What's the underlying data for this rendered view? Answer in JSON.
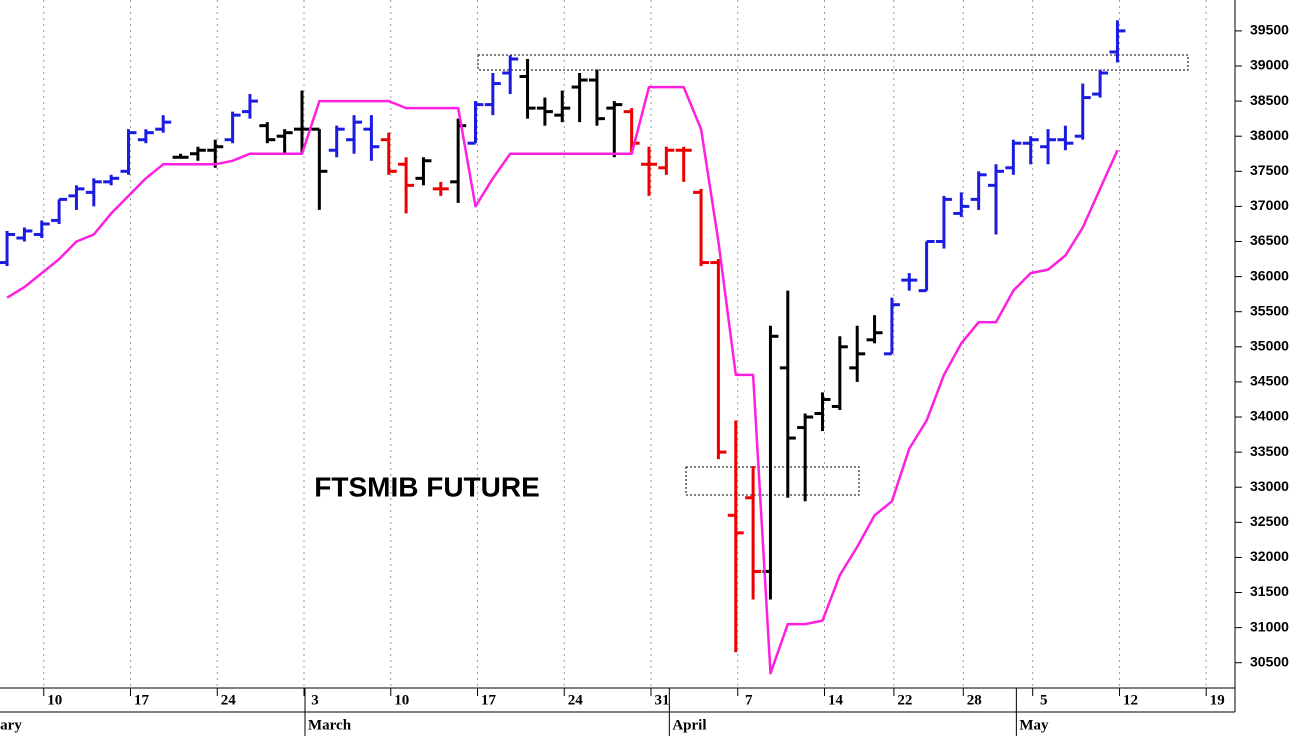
{
  "chart_data": {
    "type": "ohlc",
    "annotation": "FTSMIB FUTURE",
    "categories": [
      null,
      null,
      null,
      null,
      null,
      "10",
      null,
      null,
      null,
      null,
      "17",
      null,
      null,
      null,
      null,
      "24",
      null,
      null,
      null,
      null,
      "3",
      null,
      null,
      null,
      null,
      "10",
      null,
      null,
      null,
      null,
      "17",
      null,
      null,
      null,
      null,
      "24",
      null,
      null,
      null,
      null,
      "31",
      null,
      null,
      null,
      null,
      "7",
      null,
      null,
      null,
      null,
      "14",
      null,
      null,
      null,
      "22",
      null,
      null,
      null,
      "28",
      null,
      null,
      null,
      "5",
      null,
      null,
      null,
      null,
      "12",
      null,
      null,
      null,
      null,
      "19"
    ],
    "month_labels": [
      "February",
      null,
      null,
      null,
      null,
      null,
      null,
      null,
      null,
      null,
      null,
      null,
      null,
      null,
      null,
      null,
      null,
      null,
      null,
      null,
      "March",
      null,
      null,
      null,
      null,
      null,
      null,
      null,
      null,
      null,
      null,
      null,
      null,
      null,
      null,
      null,
      null,
      null,
      null,
      null,
      null,
      "April",
      null,
      null,
      null,
      null,
      null,
      null,
      null,
      null,
      null,
      null,
      null,
      null,
      null,
      null,
      null,
      null,
      null,
      null,
      null,
      "May",
      null,
      null,
      null,
      null,
      null,
      null,
      null,
      null,
      null,
      null,
      null
    ],
    "ohlc": {
      "open": [
        null,
        null,
        null,
        36200,
        36550,
        36600,
        36800,
        37150,
        37200,
        37350,
        37500,
        37950,
        38100,
        37700,
        37750,
        37800,
        37950,
        38350,
        38150,
        38000,
        38100,
        38100,
        37800,
        37950,
        38100,
        37950,
        37600,
        37400,
        37250,
        37350,
        37900,
        38450,
        38900,
        38850,
        38400,
        38300,
        38700,
        38800,
        38400,
        38350,
        37600,
        37550,
        37800,
        37200,
        36200,
        32600,
        32850,
        31800,
        34700,
        33850,
        34050,
        34150,
        34700,
        35100,
        34900,
        35950,
        35800,
        36500,
        36900,
        37100,
        37300,
        37550,
        37900,
        37850,
        37950,
        38000,
        38600,
        39200,
        null,
        null,
        null,
        null,
        null
      ],
      "high": [
        null,
        null,
        null,
        36650,
        36700,
        36800,
        37100,
        37300,
        37400,
        37450,
        38100,
        38100,
        38300,
        37750,
        37850,
        37950,
        38350,
        38600,
        38200,
        38100,
        38650,
        38100,
        38150,
        38300,
        38300,
        38050,
        37700,
        37700,
        37350,
        38250,
        38500,
        38900,
        39150,
        39100,
        38550,
        38650,
        38900,
        38950,
        38500,
        38400,
        37850,
        37850,
        37850,
        37250,
        36250,
        33950,
        33300,
        35300,
        35800,
        34050,
        34350,
        35150,
        35300,
        35450,
        35700,
        36050,
        36500,
        37150,
        37200,
        37500,
        37600,
        37950,
        38000,
        38100,
        38150,
        38750,
        38950,
        39650,
        null,
        null,
        null,
        null,
        null
      ],
      "low": [
        null,
        null,
        null,
        36150,
        36500,
        36550,
        36750,
        36950,
        37000,
        37300,
        37450,
        37900,
        38050,
        37680,
        37650,
        37550,
        37900,
        38250,
        37900,
        37750,
        37750,
        36950,
        37700,
        37750,
        37650,
        37450,
        36900,
        37300,
        37150,
        37050,
        37900,
        38300,
        38600,
        38250,
        38150,
        38200,
        38200,
        38150,
        37700,
        37750,
        37150,
        37450,
        37350,
        36150,
        33400,
        30650,
        31400,
        31400,
        32850,
        32800,
        33800,
        34100,
        34500,
        35050,
        34900,
        35800,
        35800,
        36400,
        36850,
        36950,
        36600,
        37450,
        37600,
        37600,
        37800,
        37950,
        38550,
        39050,
        null,
        null,
        null,
        null,
        null
      ],
      "close": [
        null,
        null,
        null,
        36600,
        36650,
        36750,
        37100,
        37250,
        37350,
        37400,
        38050,
        38050,
        38200,
        37700,
        37800,
        37850,
        38300,
        38500,
        37950,
        38050,
        38100,
        37500,
        38100,
        38200,
        37850,
        37500,
        37300,
        37650,
        37250,
        38150,
        38450,
        38750,
        39100,
        38400,
        38350,
        38400,
        38800,
        38250,
        38450,
        37900,
        37600,
        37800,
        37800,
        36200,
        33500,
        32350,
        31800,
        35150,
        33700,
        34000,
        34250,
        35000,
        34900,
        35200,
        35600,
        35950,
        36500,
        37100,
        37000,
        37450,
        37500,
        37900,
        37950,
        37950,
        37900,
        38550,
        38900,
        39500,
        null,
        null,
        null,
        null,
        null
      ],
      "colors": [
        null,
        null,
        null,
        "#1c1ce0",
        "#1c1ce0",
        "#1c1ce0",
        "#1c1ce0",
        "#1c1ce0",
        "#1c1ce0",
        "#1c1ce0",
        "#1c1ce0",
        "#1c1ce0",
        "#1c1ce0",
        "#000000",
        "#000000",
        "#000000",
        "#1c1ce0",
        "#1c1ce0",
        "#000000",
        "#000000",
        "#000000",
        "#000000",
        "#1c1ce0",
        "#1c1ce0",
        "#1c1ce0",
        "#ee0000",
        "#ee0000",
        "#000000",
        "#ee0000",
        "#000000",
        "#1c1ce0",
        "#1c1ce0",
        "#1c1ce0",
        "#000000",
        "#000000",
        "#000000",
        "#000000",
        "#000000",
        "#000000",
        "#ee0000",
        "#ee0000",
        "#ee0000",
        "#ee0000",
        "#ee0000",
        "#ee0000",
        "#ee0000",
        "#ee0000",
        "#000000",
        "#000000",
        "#000000",
        "#000000",
        "#000000",
        "#000000",
        "#000000",
        "#1c1ce0",
        "#1c1ce0",
        "#1c1ce0",
        "#1c1ce0",
        "#1c1ce0",
        "#1c1ce0",
        "#1c1ce0",
        "#1c1ce0",
        "#1c1ce0",
        "#1c1ce0",
        "#1c1ce0",
        "#1c1ce0",
        "#1c1ce0",
        "#1c1ce0",
        null,
        null,
        null,
        null,
        null
      ]
    },
    "line": {
      "color": "#ff1fe0",
      "values": [
        null,
        null,
        null,
        35700,
        35850,
        36050,
        36250,
        36500,
        36600,
        36900,
        37150,
        37400,
        37600,
        37600,
        37600,
        37600,
        37650,
        37750,
        37750,
        37750,
        37750,
        38500,
        38500,
        38500,
        38500,
        38500,
        38400,
        38400,
        38400,
        38400,
        37000,
        37400,
        37750,
        37750,
        37750,
        37750,
        37750,
        37750,
        37750,
        37750,
        38700,
        38700,
        38700,
        38100,
        36500,
        34600,
        34600,
        30350,
        31050,
        31050,
        31100,
        31750,
        32150,
        32600,
        32800,
        33550,
        33950,
        34600,
        35050,
        35350,
        35350,
        35800,
        36050,
        36100,
        36300,
        36700,
        37250,
        37800,
        null,
        null,
        null,
        null,
        null
      ]
    },
    "ylim": [
      30140,
      39940
    ],
    "yticks": [
      30500,
      31000,
      31500,
      32000,
      32500,
      33000,
      33500,
      34000,
      34500,
      35000,
      35500,
      36000,
      36500,
      37000,
      37500,
      38000,
      38500,
      39000,
      39500
    ],
    "grid": true
  }
}
